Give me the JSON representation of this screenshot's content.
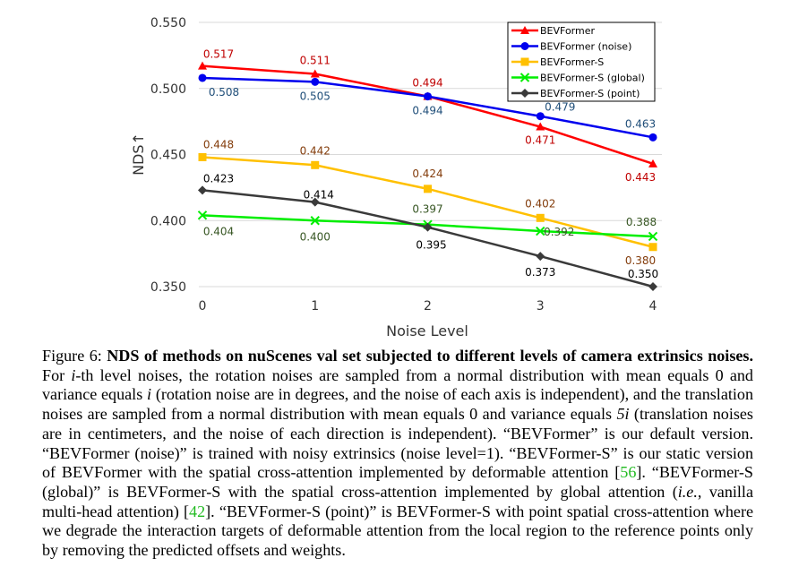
{
  "chart_data": {
    "type": "line",
    "title": "",
    "xlabel": "Noise Level",
    "ylabel": "NDS↑",
    "x": [
      0,
      1,
      2,
      3,
      4
    ],
    "x_tick_labels": [
      "0",
      "1",
      "2",
      "3",
      "4"
    ],
    "ylim": [
      0.35,
      0.55
    ],
    "y_tick_labels": [
      "0.350",
      "0.400",
      "0.450",
      "0.500",
      "0.550"
    ],
    "y_ticks": [
      0.35,
      0.4,
      0.45,
      0.5,
      0.55
    ],
    "grid": "horizontal",
    "legend_position": "top-right",
    "series": [
      {
        "name": "BEVFormer",
        "color": "#ff0000",
        "label_color": "#c00000",
        "marker": "triangle",
        "values": [
          0.517,
          0.511,
          0.494,
          0.471,
          0.443
        ],
        "labels": [
          "0.517",
          "0.511",
          "0.494",
          "0.471",
          "0.443"
        ]
      },
      {
        "name": "BEVFormer (noise)",
        "color": "#0000ee",
        "label_color": "#1f4e79",
        "marker": "circle",
        "values": [
          0.508,
          0.505,
          0.494,
          0.479,
          0.463
        ],
        "labels": [
          "0.508",
          "0.505",
          "0.494",
          "0.479",
          "0.463"
        ]
      },
      {
        "name": "BEVFormer-S",
        "color": "#ffc000",
        "label_color": "#833c0b",
        "marker": "square",
        "values": [
          0.448,
          0.442,
          0.424,
          0.402,
          0.38
        ],
        "labels": [
          "0.448",
          "0.442",
          "0.424",
          "0.402",
          "0.380"
        ]
      },
      {
        "name": "BEVFormer-S (global)",
        "color": "#00ee00",
        "label_color": "#375623",
        "marker": "x",
        "values": [
          0.404,
          0.4,
          0.397,
          0.392,
          0.388
        ],
        "labels": [
          "0.404",
          "0.400",
          "0.397",
          "0.392",
          "0.388"
        ]
      },
      {
        "name": "BEVFormer-S (point)",
        "color": "#3a3a3a",
        "label_color": "#000000",
        "marker": "diamond",
        "values": [
          0.423,
          0.414,
          0.395,
          0.373,
          0.35
        ],
        "labels": [
          "0.423",
          "0.414",
          "0.395",
          "0.373",
          "0.350"
        ]
      }
    ]
  },
  "caption": {
    "figure_label": "Figure 6:",
    "bold_title": "NDS of methods on nuScenes val set subjected to different levels of camera extrinsics noises.",
    "s1": "For",
    "i_var": "i",
    "s2": "-th level noises, the rotation noises are sampled from a normal distribution with mean equals 0 and variance equals",
    "s3": "(rotation noise are in degrees, and the noise of each axis is independent), and the translation noises are sampled from a normal distribution with mean equals 0 and variance equals",
    "five_i": "5i",
    "s4": "(translation noises are in centimeters, and the noise of each direction is independent). “BEVFormer” is our default version. “BEVFormer (noise)” is trained with noisy extrinsics (noise level=1). “BEVFormer-S” is our static version of BEVFormer with the spatial cross-attention implemented by deformable attention [",
    "ref1": "56",
    "s5": "]. “BEVFormer-S (global)” is BEVFormer-S with the spatial cross-attention implemented by global attention (",
    "ie": "i.e.",
    "s6": ", vanilla multi-head attention) [",
    "ref2": "42",
    "s7": "]. “BEVFormer-S (point)” is BEVFormer-S with point spatial cross-attention where we degrade the interaction targets of deformable attention from the local region to the reference points only by removing the predicted offsets and weights."
  }
}
